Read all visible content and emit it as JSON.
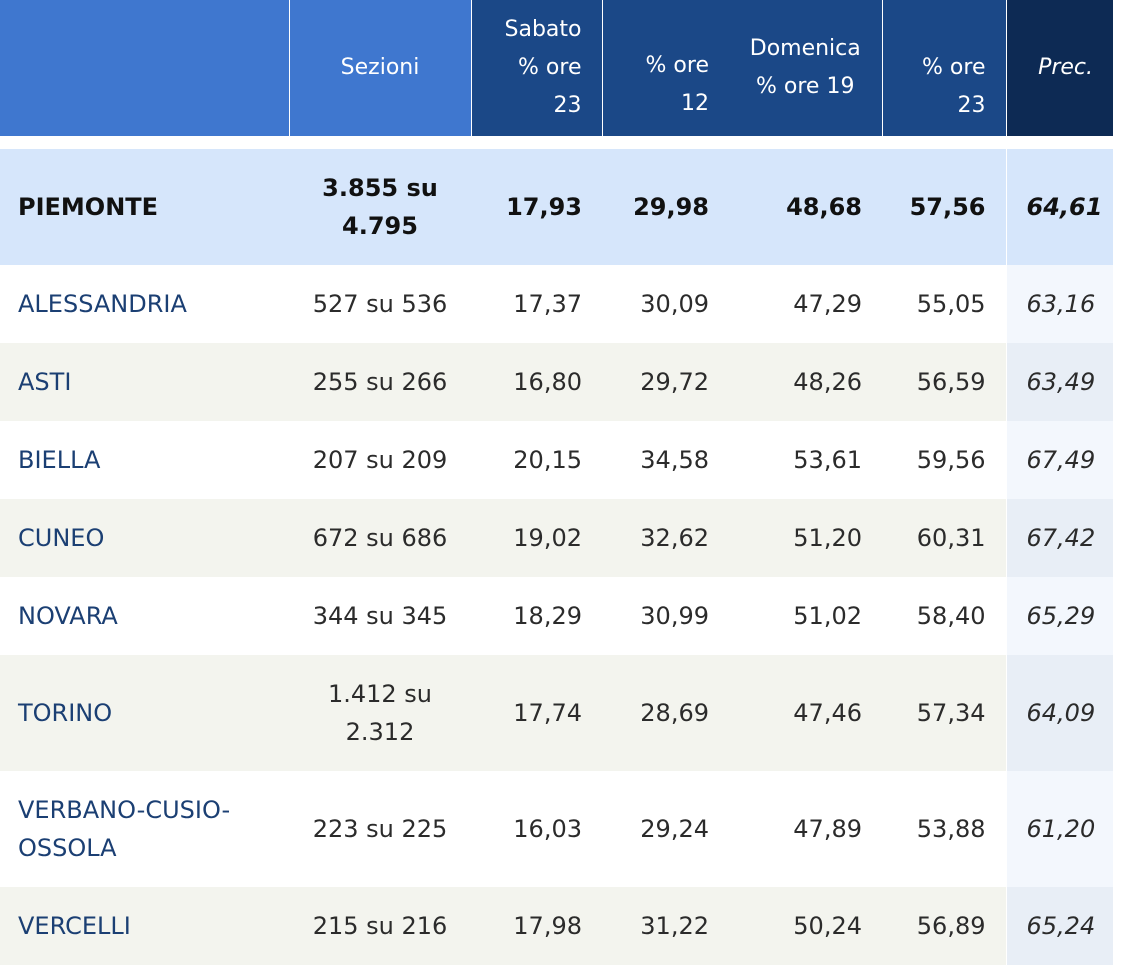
{
  "header": {
    "sezioni": "Sezioni",
    "sabato_line1": "Sabato",
    "sabato_line2": "% ore",
    "sabato_line3": "23",
    "ore12_line1": "% ore",
    "ore12_line2": "12",
    "domenica_line1": "Domenica",
    "domenica_line2": "% ore 19",
    "ore23_line1": "% ore",
    "ore23_line2": "23",
    "prec": "Prec."
  },
  "total": {
    "name": "PIEMONTE",
    "sezioni": "3.855 su 4.795",
    "sab23": "17,93",
    "dom12": "29,98",
    "dom19": "48,68",
    "dom23": "57,56",
    "prec": "64,61"
  },
  "rows": [
    {
      "name": "ALESSANDRIA",
      "sezioni": "527 su 536",
      "sab23": "17,37",
      "dom12": "30,09",
      "dom19": "47,29",
      "dom23": "55,05",
      "prec": "63,16"
    },
    {
      "name": "ASTI",
      "sezioni": "255 su 266",
      "sab23": "16,80",
      "dom12": "29,72",
      "dom19": "48,26",
      "dom23": "56,59",
      "prec": "63,49"
    },
    {
      "name": "BIELLA",
      "sezioni": "207 su 209",
      "sab23": "20,15",
      "dom12": "34,58",
      "dom19": "53,61",
      "dom23": "59,56",
      "prec": "67,49"
    },
    {
      "name": "CUNEO",
      "sezioni": "672 su 686",
      "sab23": "19,02",
      "dom12": "32,62",
      "dom19": "51,20",
      "dom23": "60,31",
      "prec": "67,42"
    },
    {
      "name": "NOVARA",
      "sezioni": "344 su 345",
      "sab23": "18,29",
      "dom12": "30,99",
      "dom19": "51,02",
      "dom23": "58,40",
      "prec": "65,29"
    },
    {
      "name": "TORINO",
      "sezioni": "1.412 su 2.312",
      "sab23": "17,74",
      "dom12": "28,69",
      "dom19": "47,46",
      "dom23": "57,34",
      "prec": "64,09"
    },
    {
      "name": "VERBANO-CUSIO-OSSOLA",
      "sezioni": "223 su 225",
      "sab23": "16,03",
      "dom12": "29,24",
      "dom19": "47,89",
      "dom23": "53,88",
      "prec": "61,20"
    },
    {
      "name": "VERCELLI",
      "sezioni": "215 su 216",
      "sab23": "17,98",
      "dom12": "31,22",
      "dom19": "50,24",
      "dom23": "56,89",
      "prec": "65,24"
    }
  ]
}
